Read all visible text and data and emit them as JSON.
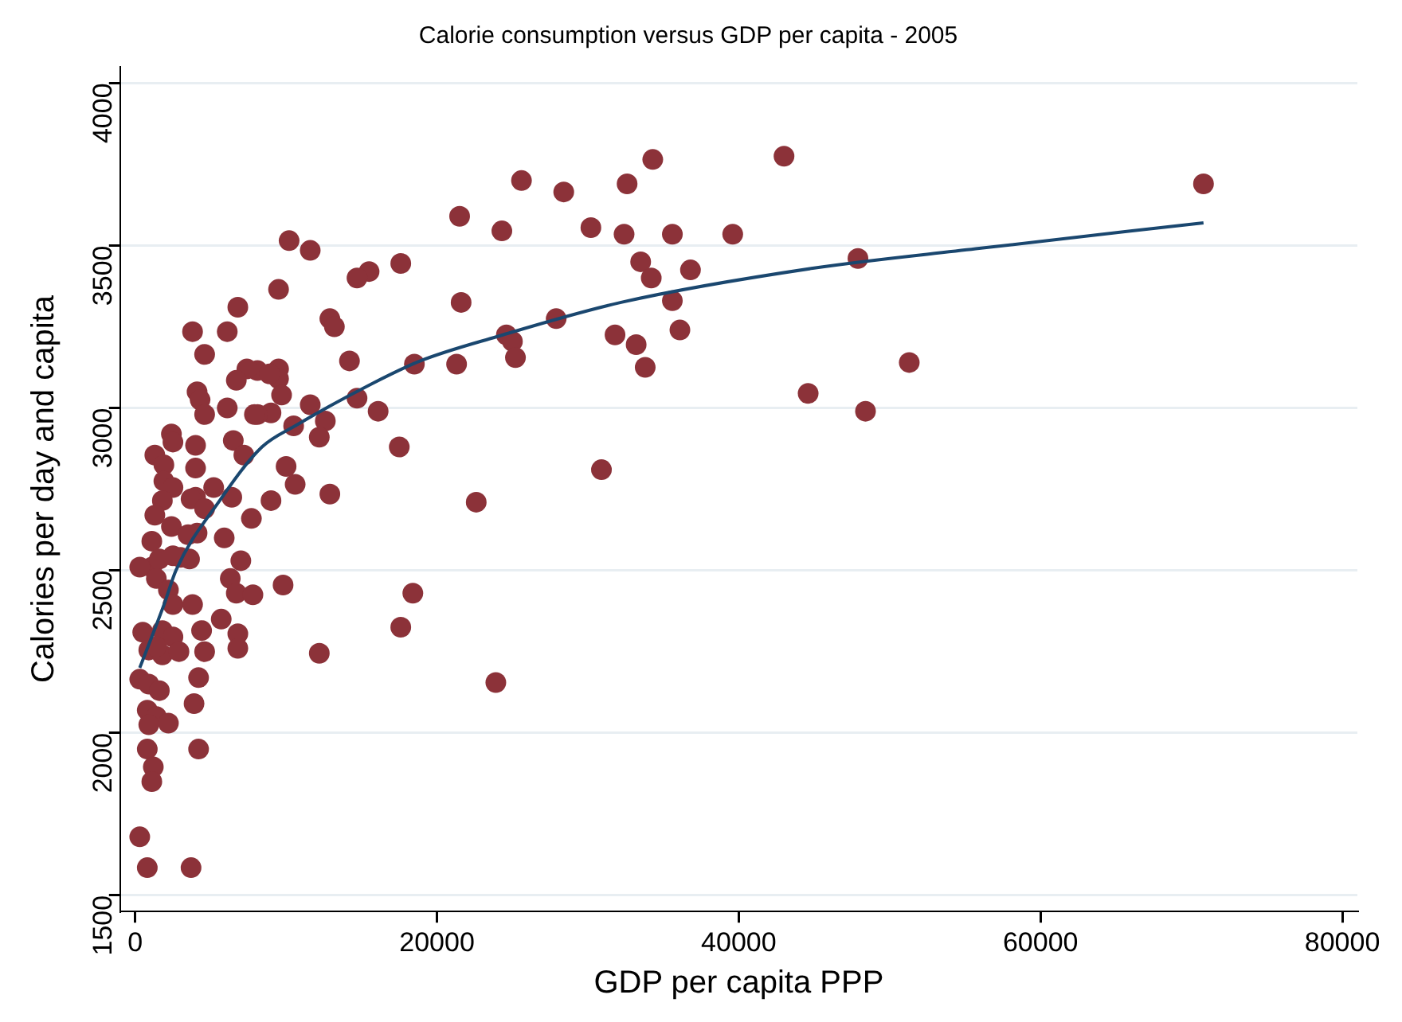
{
  "chart_data": {
    "type": "scatter",
    "title": "Calorie consumption versus GDP per capita - 2005",
    "xlabel": "GDP per capita PPP",
    "ylabel": "Calories per day and capita",
    "xlim": [
      -1000,
      81000
    ],
    "xticks": [
      0,
      20000,
      40000,
      60000,
      80000
    ],
    "ylim": [
      1450,
      4050
    ],
    "yticks": [
      1500,
      2000,
      2500,
      3000,
      3500,
      4000
    ],
    "grid": "y",
    "series": [
      {
        "type": "scatter",
        "marker": "circle",
        "color": "#8c3239",
        "x": [
          70800,
          47900,
          51300,
          48400,
          25600,
          28400,
          32600,
          34300,
          43000,
          24300,
          30200,
          32400,
          35600,
          39600,
          33500,
          34200,
          36800,
          35600,
          27900,
          24600,
          25000,
          25200,
          31800,
          33200,
          33800,
          36100,
          44600,
          30900,
          17500,
          10000,
          10600,
          12900,
          22600,
          18400,
          17600,
          12200,
          23900,
          21500,
          10200,
          11600,
          17600,
          15500,
          14700,
          9500,
          21600,
          12900,
          13200,
          14200,
          18500,
          21300,
          8100,
          9500,
          9500,
          9700,
          9000,
          8100,
          14700,
          16100,
          11600,
          12600,
          10500,
          12200,
          6800,
          3800,
          6100,
          4600,
          7400,
          6700,
          8900,
          4100,
          4300,
          4600,
          6100,
          7900,
          2400,
          2500,
          4000,
          6500,
          1300,
          1900,
          7200,
          4000,
          1900,
          2500,
          4000,
          5200,
          6400,
          9000,
          7700,
          3700,
          1800,
          1300,
          4600,
          4100,
          2400,
          1100,
          3500,
          3000,
          3600,
          5900,
          7000,
          1100,
          300,
          1600,
          2500,
          1400,
          6300,
          6700,
          7800,
          9800,
          2200,
          2500,
          3800,
          5700,
          6800,
          6800,
          4400,
          4600,
          500,
          1800,
          2500,
          900,
          1800,
          2900,
          1400,
          300,
          900,
          1600,
          4200,
          3900,
          800,
          1400,
          2200,
          900,
          800,
          4200,
          1200,
          1100,
          300,
          800,
          3700
        ],
        "values": [
          3690,
          3460,
          3140,
          2990,
          3700,
          3665,
          3690,
          3765,
          3775,
          3545,
          3555,
          3535,
          3535,
          3535,
          3450,
          3400,
          3425,
          3330,
          3275,
          3225,
          3205,
          3155,
          3225,
          3195,
          3125,
          3240,
          3045,
          2810,
          2880,
          2820,
          2765,
          2735,
          2710,
          2430,
          2325,
          2245,
          2155,
          3590,
          3515,
          3485,
          3445,
          3420,
          3400,
          3365,
          3325,
          3275,
          3250,
          3145,
          3135,
          3135,
          3115,
          3120,
          3090,
          3040,
          2985,
          2980,
          3030,
          2990,
          3010,
          2960,
          2945,
          2910,
          3310,
          3235,
          3235,
          3165,
          3120,
          3085,
          3105,
          3050,
          3025,
          2980,
          3000,
          2980,
          2920,
          2895,
          2885,
          2900,
          2855,
          2825,
          2855,
          2815,
          2775,
          2755,
          2725,
          2755,
          2725,
          2715,
          2660,
          2720,
          2715,
          2670,
          2690,
          2615,
          2635,
          2590,
          2610,
          2540,
          2535,
          2600,
          2530,
          2510,
          2510,
          2535,
          2545,
          2475,
          2475,
          2430,
          2425,
          2455,
          2440,
          2395,
          2395,
          2350,
          2305,
          2260,
          2315,
          2250,
          2310,
          2315,
          2295,
          2255,
          2240,
          2250,
          2265,
          2165,
          2150,
          2130,
          2170,
          2090,
          2070,
          2050,
          2030,
          2025,
          1950,
          1950,
          1895,
          1850,
          1680,
          1585,
          1585
        ]
      },
      {
        "type": "line",
        "color": "#1a476f",
        "x": [
          300,
          1950,
          2700,
          5600,
          8400,
          10600,
          15700,
          18900,
          24000,
          32200,
          44900,
          55700,
          70800
        ],
        "values": [
          2200,
          2400,
          2500,
          2715,
          2880,
          2945,
          3075,
          3145,
          3220,
          3325,
          3430,
          3490,
          3570
        ]
      }
    ]
  }
}
